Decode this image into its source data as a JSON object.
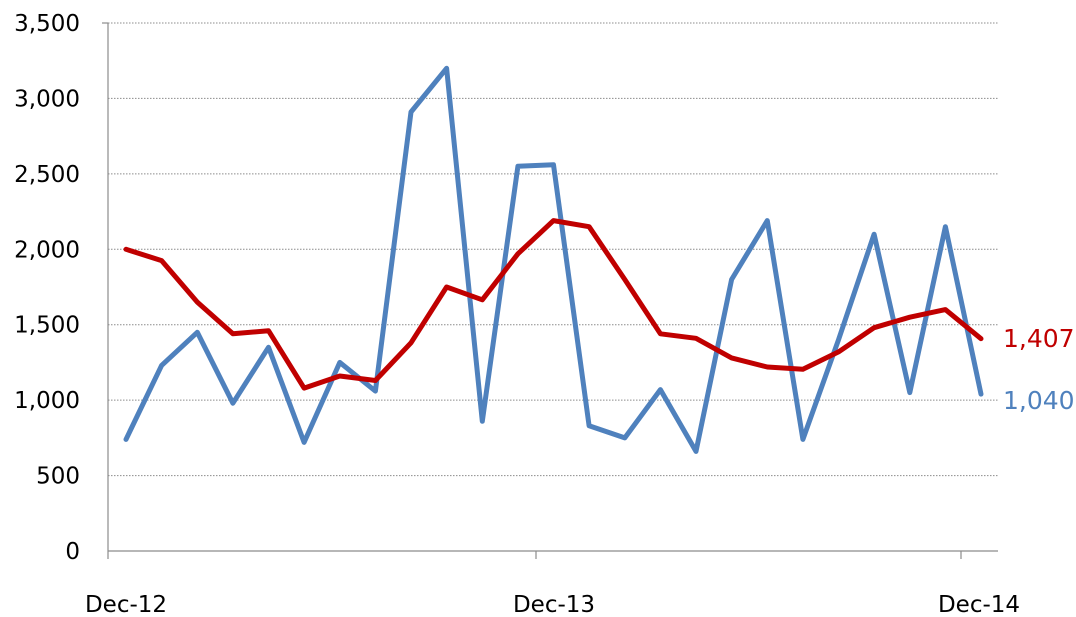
{
  "chart_data": {
    "type": "line",
    "title": "",
    "xlabel": "",
    "ylabel": "",
    "ylim": [
      0,
      3500
    ],
    "y_ticks": [
      0,
      500,
      1000,
      1500,
      2000,
      2500,
      3000,
      3500
    ],
    "y_tick_labels": [
      "0",
      "500",
      "1,000",
      "1,500",
      "2,000",
      "2,500",
      "3,000",
      "3,500"
    ],
    "x_tick_labels": [
      {
        "index": 0,
        "label": "Dec-12"
      },
      {
        "index": 12,
        "label": "Dec-13"
      },
      {
        "index": 24,
        "label": "Dec-14"
      }
    ],
    "grid": true,
    "legend": "none",
    "x": [
      "Dec-12",
      "Jan-13",
      "Feb-13",
      "Mar-13",
      "Apr-13",
      "May-13",
      "Jun-13",
      "Jul-13",
      "Aug-13",
      "Sep-13",
      "Oct-13",
      "Nov-13",
      "Dec-13",
      "Jan-14",
      "Feb-14",
      "Mar-14",
      "Apr-14",
      "May-14",
      "Jun-14",
      "Jul-14",
      "Aug-14",
      "Sep-14",
      "Oct-14",
      "Nov-14",
      "Dec-14"
    ],
    "series": [
      {
        "color": "#4f81bd",
        "end_label": "1,040",
        "values": [
          740,
          1230,
          1450,
          980,
          1350,
          720,
          1250,
          1060,
          2910,
          3200,
          860,
          2550,
          2560,
          830,
          750,
          1070,
          660,
          1800,
          2190,
          740,
          1400,
          2100,
          1050,
          2150,
          1040
        ]
      },
      {
        "color": "#c00000",
        "end_label": "1,407",
        "values": [
          2000,
          1925,
          1650,
          1440,
          1460,
          1080,
          1160,
          1130,
          1380,
          1750,
          1665,
          1970,
          2190,
          2150,
          1800,
          1440,
          1410,
          1280,
          1220,
          1205,
          1320,
          1480,
          1550,
          1600,
          1407
        ]
      }
    ]
  }
}
